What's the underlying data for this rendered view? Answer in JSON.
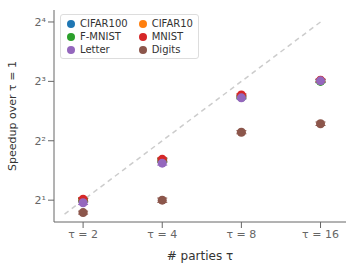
{
  "chart_data": {
    "type": "scatter",
    "x": [
      2,
      4,
      8,
      16
    ],
    "xlabel": "# parties τ",
    "ylabel": "Speedup over τ = 1",
    "xlim": [
      1.55,
      20
    ],
    "xticks": [
      {
        "value": 2,
        "label": "τ = 2"
      },
      {
        "value": 4,
        "label": "τ = 4"
      },
      {
        "value": 8,
        "label": "τ = 8"
      },
      {
        "value": 16,
        "label": "τ = 16"
      }
    ],
    "ylim": [
      1.55,
      18.4
    ],
    "yticks": [
      {
        "value": 2,
        "label": "2¹"
      },
      {
        "value": 4,
        "label": "2²"
      },
      {
        "value": 8,
        "label": "2³"
      },
      {
        "value": 16,
        "label": "2⁴"
      }
    ],
    "log": true,
    "grid": false,
    "legend": "upper left",
    "series": [
      {
        "name": "CIFAR100",
        "color": "#1f77b4",
        "marker": "circle",
        "values": [
          2.0,
          3.18,
          6.72,
          8.05
        ],
        "errors": [
          0.04,
          0.06,
          0.1,
          0.12
        ]
      },
      {
        "name": "CIFAR10",
        "color": "#ff7f0e",
        "marker": "circle",
        "values": [
          2.0,
          3.18,
          6.72,
          8.05
        ],
        "errors": [
          0.04,
          0.06,
          0.1,
          0.12
        ]
      },
      {
        "name": "F-MNIST",
        "color": "#2ca02c",
        "marker": "circle",
        "values": [
          2.0,
          3.18,
          6.65,
          8.0
        ],
        "errors": [
          0.04,
          0.06,
          0.1,
          0.12
        ]
      },
      {
        "name": "MNIST",
        "color": "#d62728",
        "marker": "circle",
        "values": [
          2.02,
          3.22,
          6.82,
          8.1
        ],
        "errors": [
          0.04,
          0.06,
          0.1,
          0.12
        ]
      },
      {
        "name": "Letter",
        "color": "#9467bd",
        "marker": "circle",
        "values": [
          1.94,
          3.08,
          6.6,
          8.05
        ],
        "errors": [
          0.04,
          0.07,
          0.1,
          0.12
        ]
      },
      {
        "name": "Digits",
        "color": "#8c564b",
        "marker": "circle",
        "values": [
          1.73,
          2.0,
          4.42,
          4.88
        ],
        "errors": [
          0.03,
          0.05,
          0.08,
          0.1
        ]
      }
    ],
    "reference_line": {
      "x": [
        1.7,
        16
      ],
      "values": [
        1.7,
        16
      ],
      "color": "#cccccc",
      "line_style": "dashed"
    }
  }
}
